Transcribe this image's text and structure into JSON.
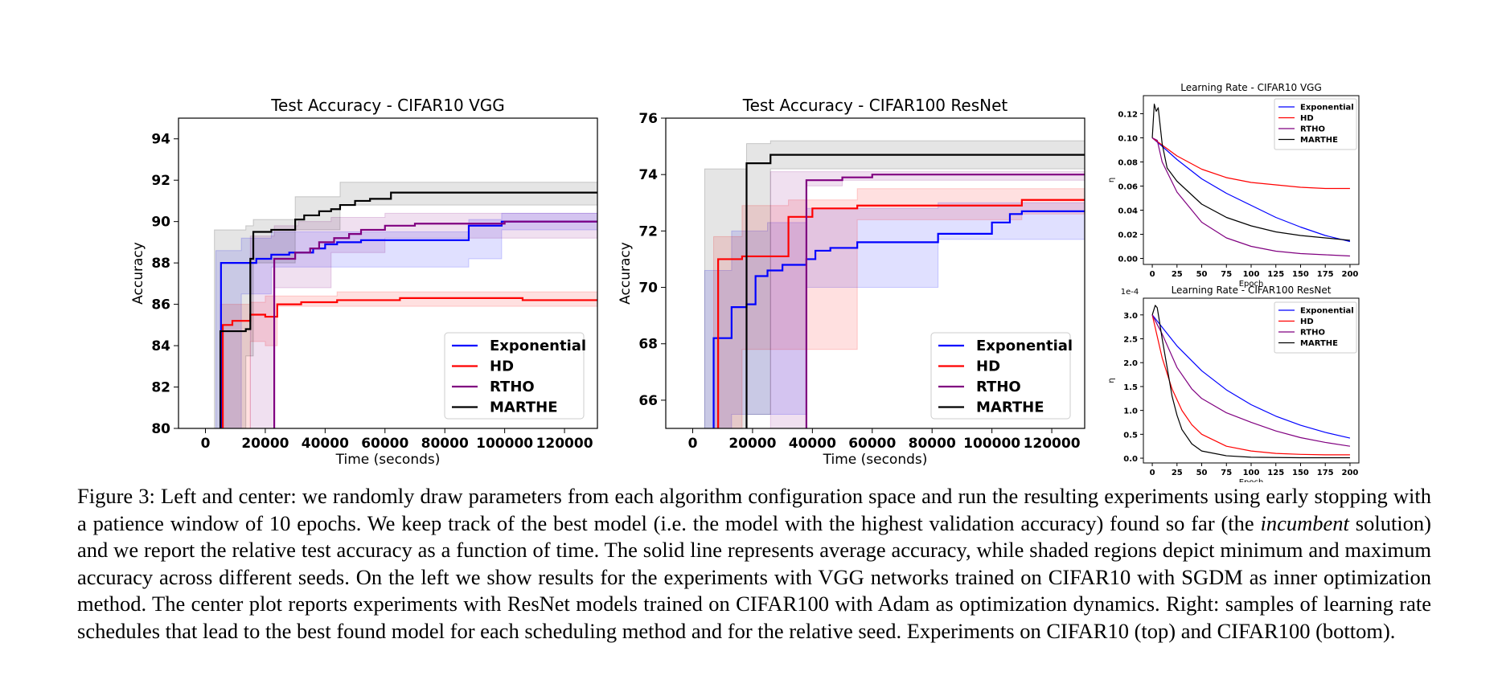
{
  "colors": {
    "Exponential": "#0000ff",
    "HD": "#ff0000",
    "RTHO": "#800080",
    "MARTHE": "#000000"
  },
  "chart_data": [
    {
      "type": "line",
      "style": "step with min/max shaded band",
      "title": "Test Accuracy - CIFAR10 VGG",
      "xlabel": "Time (seconds)",
      "ylabel": "Accuracy",
      "xlim": [
        -9000,
        131000
      ],
      "ylim": [
        80,
        95
      ],
      "xticks": [
        0,
        20000,
        40000,
        60000,
        80000,
        100000,
        120000
      ],
      "xtick_labels": [
        "0",
        "20000",
        "40000",
        "60000",
        "80000",
        "100000",
        "120000"
      ],
      "yticks": [
        80,
        82,
        84,
        86,
        88,
        90,
        92,
        94
      ],
      "legend_loc": "lower right",
      "series": [
        {
          "name": "Exponential",
          "x": [
            5200,
            5200,
            17000,
            22000,
            28000,
            36000,
            40000,
            44000,
            52000,
            88000,
            99000,
            131000
          ],
          "y": [
            80,
            88.0,
            88.2,
            88.4,
            88.5,
            88.7,
            88.9,
            89.0,
            89.1,
            89.8,
            90.0,
            90.0
          ],
          "band_x": [
            3500,
            12000,
            22000,
            88000,
            99000,
            131000
          ],
          "band_lo": [
            80,
            86.5,
            87.8,
            88.2,
            89.6,
            89.7
          ],
          "band_hi": [
            88.6,
            89.2,
            89.5,
            90.1,
            90.4,
            90.4
          ]
        },
        {
          "name": "HD",
          "x": [
            5800,
            5800,
            9000,
            15000,
            20000,
            24000,
            32000,
            44000,
            65000,
            106000,
            131000
          ],
          "y": [
            80,
            85.0,
            85.2,
            85.5,
            85.4,
            86.0,
            86.1,
            86.2,
            86.3,
            86.2,
            86.2
          ],
          "band_x": [
            5000,
            15000,
            20000,
            24000,
            44000,
            131000
          ],
          "band_lo": [
            80,
            84.2,
            84.0,
            85.9,
            85.9,
            85.9
          ],
          "band_hi": [
            86.0,
            86.1,
            86.4,
            86.4,
            86.6,
            86.6
          ]
        },
        {
          "name": "RTHO",
          "x": [
            23000,
            23000,
            30000,
            35000,
            38000,
            43000,
            48000,
            52000,
            60000,
            70000,
            100000,
            131000
          ],
          "y": [
            80,
            88.2,
            88.5,
            88.7,
            89.0,
            89.2,
            89.4,
            89.6,
            89.8,
            89.9,
            90.0,
            90.0
          ],
          "band_x": [
            15000,
            23000,
            31000,
            42000,
            60000,
            131000
          ],
          "band_lo": [
            80,
            86.8,
            86.8,
            88.5,
            89.2,
            89.7
          ],
          "band_hi": [
            89.3,
            89.8,
            90.0,
            90.2,
            90.4,
            90.4
          ]
        },
        {
          "name": "MARTHE",
          "x": [
            5000,
            5000,
            13500,
            15000,
            16000,
            22000,
            30000,
            33000,
            38000,
            42000,
            45000,
            50000,
            55000,
            62000,
            80000,
            131000
          ],
          "y": [
            80,
            84.7,
            84.8,
            88.2,
            89.5,
            89.6,
            90.1,
            90.3,
            90.5,
            90.6,
            90.8,
            91.0,
            91.1,
            91.4,
            91.4,
            91.4
          ],
          "band_x": [
            3000,
            13500,
            16000,
            30000,
            45000,
            131000
          ],
          "band_lo": [
            80,
            83.5,
            88.0,
            89.6,
            90.8,
            90.9
          ],
          "band_hi": [
            89.6,
            89.8,
            90.1,
            91.2,
            91.9,
            91.9
          ]
        }
      ]
    },
    {
      "type": "line",
      "style": "step with min/max shaded band",
      "title": "Test Accuracy - CIFAR100 ResNet",
      "xlabel": "Time (seconds)",
      "ylabel": "Accuracy",
      "xlim": [
        -9000,
        131000
      ],
      "ylim": [
        65,
        76
      ],
      "xticks": [
        0,
        20000,
        40000,
        60000,
        80000,
        100000,
        120000
      ],
      "xtick_labels": [
        "0",
        "20000",
        "40000",
        "60000",
        "80000",
        "100000",
        "120000"
      ],
      "yticks": [
        66,
        68,
        70,
        72,
        74,
        76
      ],
      "legend_loc": "lower right",
      "series": [
        {
          "name": "Exponential",
          "x": [
            7000,
            7000,
            13000,
            18000,
            21000,
            25000,
            30000,
            38000,
            41000,
            46000,
            55000,
            82000,
            100000,
            106000,
            110000,
            131000
          ],
          "y": [
            65,
            68.2,
            69.3,
            69.4,
            70.4,
            70.6,
            70.8,
            71.0,
            71.3,
            71.4,
            71.6,
            71.9,
            72.3,
            72.6,
            72.7,
            72.7
          ],
          "band_x": [
            4000,
            13000,
            25000,
            38000,
            82000,
            131000
          ],
          "band_lo": [
            65,
            65.5,
            65.5,
            70.0,
            71.7,
            72.3
          ],
          "band_hi": [
            70.6,
            72.0,
            72.3,
            72.8,
            73.0,
            73.0
          ]
        },
        {
          "name": "HD",
          "x": [
            8500,
            8500,
            16500,
            32000,
            40000,
            55000,
            90000,
            110000,
            131000
          ],
          "y": [
            65,
            71.0,
            71.1,
            72.5,
            72.8,
            72.9,
            72.9,
            73.1,
            73.1
          ],
          "band_x": [
            7000,
            16500,
            32000,
            55000,
            110000,
            131000
          ],
          "band_lo": [
            65,
            67.8,
            67.8,
            72.4,
            72.6,
            72.7
          ],
          "band_hi": [
            71.8,
            72.9,
            73.1,
            73.5,
            73.5,
            73.5
          ]
        },
        {
          "name": "RTHO",
          "x": [
            38000,
            38000,
            50000,
            60000,
            131000
          ],
          "y": [
            65,
            73.8,
            73.9,
            74.0,
            74.0
          ],
          "band_x": [
            26000,
            38000,
            50000,
            131000
          ],
          "band_lo": [
            65,
            73.6,
            73.8,
            73.9
          ],
          "band_hi": [
            74.1,
            74.1,
            74.1,
            74.1
          ]
        },
        {
          "name": "MARTHE",
          "x": [
            18000,
            18000,
            23000,
            26000,
            131000
          ],
          "y": [
            65,
            74.4,
            74.4,
            74.7,
            74.7
          ],
          "band_x": [
            4000,
            18000,
            26000,
            131000
          ],
          "band_lo": [
            65,
            65.5,
            74.2,
            74.3
          ],
          "band_hi": [
            74.2,
            75.1,
            75.2,
            75.2
          ]
        }
      ]
    },
    {
      "type": "line",
      "title": "Learning Rate - CIFAR10 VGG",
      "xlabel": "Epoch",
      "ylabel": "η",
      "xlim": [
        -9,
        209
      ],
      "ylim": [
        -0.005,
        0.135
      ],
      "xticks": [
        0,
        25,
        50,
        75,
        100,
        125,
        150,
        175,
        200
      ],
      "yticks": [
        0.0,
        0.02,
        0.04,
        0.06,
        0.08,
        0.1,
        0.12
      ],
      "ytick_labels": [
        "0.00",
        "0.02",
        "0.04",
        "0.06",
        "0.08",
        "0.10",
        "0.12"
      ],
      "legend_loc": "upper right",
      "series": [
        {
          "name": "Exponential",
          "x": [
            0,
            10,
            25,
            50,
            75,
            100,
            125,
            150,
            175,
            200
          ],
          "y": [
            0.1,
            0.093,
            0.082,
            0.066,
            0.054,
            0.044,
            0.034,
            0.026,
            0.019,
            0.014
          ]
        },
        {
          "name": "HD",
          "x": [
            0,
            10,
            25,
            50,
            75,
            100,
            125,
            150,
            175,
            200
          ],
          "y": [
            0.1,
            0.094,
            0.085,
            0.074,
            0.067,
            0.063,
            0.061,
            0.059,
            0.058,
            0.058
          ]
        },
        {
          "name": "RTHO",
          "x": [
            0,
            5,
            10,
            25,
            50,
            75,
            100,
            125,
            150,
            175,
            200
          ],
          "y": [
            0.1,
            0.098,
            0.08,
            0.055,
            0.03,
            0.017,
            0.01,
            0.006,
            0.004,
            0.003,
            0.002
          ]
        },
        {
          "name": "MARTHE",
          "x": [
            0,
            2,
            4,
            6,
            8,
            10,
            15,
            25,
            50,
            75,
            100,
            125,
            150,
            175,
            200
          ],
          "y": [
            0.1,
            0.128,
            0.122,
            0.125,
            0.11,
            0.095,
            0.075,
            0.064,
            0.045,
            0.034,
            0.027,
            0.022,
            0.019,
            0.017,
            0.015
          ]
        }
      ]
    },
    {
      "type": "line",
      "title": "Learning Rate - CIFAR100 ResNet",
      "xlabel": "Epoch",
      "ylabel": "η",
      "scale_label": "1e-4",
      "xlim": [
        -9,
        209
      ],
      "ylim": [
        -0.1,
        3.35
      ],
      "xticks": [
        0,
        25,
        50,
        75,
        100,
        125,
        150,
        175,
        200
      ],
      "yticks": [
        0.0,
        0.5,
        1.0,
        1.5,
        2.0,
        2.5,
        3.0
      ],
      "ytick_labels": [
        "0.0",
        "0.5",
        "1.0",
        "1.5",
        "2.0",
        "2.5",
        "3.0"
      ],
      "legend_loc": "upper right",
      "series": [
        {
          "name": "Exponential",
          "x": [
            0,
            25,
            50,
            75,
            100,
            125,
            150,
            175,
            200
          ],
          "y": [
            3.0,
            2.35,
            1.83,
            1.43,
            1.12,
            0.88,
            0.69,
            0.54,
            0.42
          ]
        },
        {
          "name": "HD",
          "x": [
            0,
            10,
            20,
            30,
            40,
            50,
            75,
            100,
            125,
            150,
            175,
            200
          ],
          "y": [
            3.0,
            2.1,
            1.45,
            1.0,
            0.7,
            0.5,
            0.25,
            0.15,
            0.1,
            0.08,
            0.07,
            0.07
          ]
        },
        {
          "name": "RTHO",
          "x": [
            0,
            10,
            25,
            40,
            50,
            75,
            100,
            125,
            150,
            175,
            200
          ],
          "y": [
            3.0,
            2.6,
            1.9,
            1.45,
            1.25,
            0.95,
            0.75,
            0.57,
            0.43,
            0.33,
            0.25
          ]
        },
        {
          "name": "MARTHE",
          "x": [
            0,
            3,
            5,
            7,
            10,
            15,
            20,
            25,
            30,
            40,
            50,
            75,
            100,
            150,
            200
          ],
          "y": [
            3.0,
            3.2,
            3.15,
            2.9,
            2.5,
            1.9,
            1.3,
            0.9,
            0.6,
            0.3,
            0.15,
            0.05,
            0.02,
            0.01,
            0.01
          ]
        }
      ]
    }
  ],
  "caption": {
    "part1": "Figure 3: Left and center: we randomly draw parameters from each algorithm configuration space and run the resulting experiments using early stopping with a patience window of 10 epochs. We keep track of the best model (i.e. the model with the highest validation accuracy) found so far (the ",
    "italic": "incumbent",
    "part2": " solution) and we report the relative test accuracy as a function of time. The solid line represents average accuracy, while shaded regions depict minimum and maximum accuracy across different seeds. On the left we show results for the experiments with VGG networks trained on CIFAR10 with SGDM as inner optimization method. The center plot reports experiments with ResNet models trained on CIFAR100 with Adam as optimization dynamics. Right: samples of learning rate schedules that lead to the best found model for each scheduling method and for the relative seed. Experiments on CIFAR10 (top) and CIFAR100 (bottom)."
  }
}
